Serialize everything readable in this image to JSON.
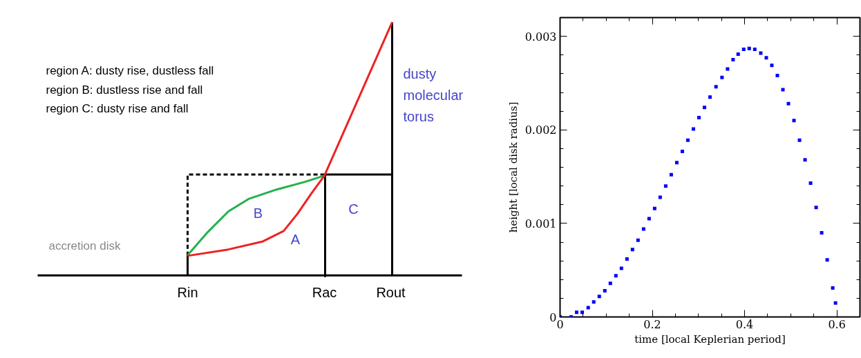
{
  "chart_data": [
    {
      "type": "other",
      "annotations": [
        "region A: dusty rise, dustless fall",
        "region B: dustless rise and fall",
        "region C: dusty rise and fall",
        "dusty molecular torus",
        "B",
        "A",
        "C",
        "accretion disk",
        "Rin",
        "Rac",
        "Rout"
      ]
    },
    {
      "type": "scatter",
      "xlabel": "time [local Keplerian period]",
      "ylabel": "height [local disk radius]",
      "color": "#0000ff",
      "marker": "square",
      "xlim": [
        0,
        0.65
      ],
      "ylim": [
        0,
        0.0032
      ],
      "xticks": [
        0,
        0.2,
        0.4,
        0.6
      ],
      "yticks": [
        0,
        0.001,
        0.002,
        0.003
      ],
      "x": [
        0,
        0.024,
        0.036,
        0.048,
        0.061,
        0.073,
        0.085,
        0.097,
        0.109,
        0.121,
        0.133,
        0.145,
        0.157,
        0.169,
        0.181,
        0.193,
        0.205,
        0.217,
        0.229,
        0.241,
        0.253,
        0.265,
        0.277,
        0.289,
        0.301,
        0.313,
        0.325,
        0.338,
        0.351,
        0.363,
        0.375,
        0.386,
        0.398,
        0.41,
        0.422,
        0.435,
        0.447,
        0.459,
        0.471,
        0.483,
        0.495,
        0.507,
        0.519,
        0.531,
        0.543,
        0.555,
        0.567,
        0.579,
        0.591,
        0.597
      ],
      "values": [
        0,
        0,
        5e-05,
        5e-05,
        0.0001,
        0.00016,
        0.00022,
        0.00028,
        0.00036,
        0.00044,
        0.00052,
        0.00062,
        0.00072,
        0.00082,
        0.00094,
        0.00105,
        0.00116,
        0.00128,
        0.0014,
        0.00152,
        0.00165,
        0.00177,
        0.00189,
        0.00201,
        0.00213,
        0.00224,
        0.00235,
        0.00246,
        0.00256,
        0.00265,
        0.00275,
        0.00281,
        0.00286,
        0.00287,
        0.00286,
        0.00282,
        0.00277,
        0.00269,
        0.00258,
        0.00243,
        0.00228,
        0.0021,
        0.00189,
        0.00168,
        0.00143,
        0.00117,
        0.0009,
        0.00061,
        0.00031,
        0.00015
      ]
    }
  ]
}
